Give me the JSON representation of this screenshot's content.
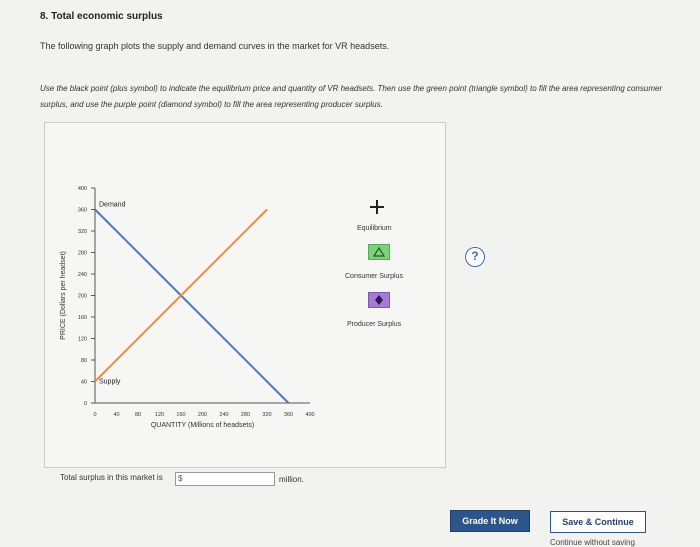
{
  "question": {
    "title": "8. Total economic surplus",
    "intro": "The following graph plots the supply and demand curves in the market for VR headsets.",
    "instructions": "Use the black point (plus symbol) to indicate the equilibrium price and quantity of VR headsets. Then use the green point (triangle symbol) to fill the area representing consumer surplus, and use the purple point (diamond symbol) to fill the area representing producer surplus."
  },
  "help_icon": "question-mark-icon",
  "chart_data": {
    "type": "line",
    "xlabel": "QUANTITY (Millions of headsets)",
    "ylabel": "PRICE (Dollars per headset)",
    "xlim": [
      0,
      400
    ],
    "ylim": [
      0,
      400
    ],
    "x_ticks": [
      0,
      40,
      80,
      120,
      160,
      200,
      240,
      280,
      320,
      360,
      400
    ],
    "y_ticks": [
      0,
      40,
      80,
      120,
      160,
      200,
      240,
      280,
      320,
      360,
      400
    ],
    "series": [
      {
        "name": "Demand",
        "color": "#4a78c2",
        "points": [
          [
            0,
            360
          ],
          [
            360,
            0
          ]
        ]
      },
      {
        "name": "Supply",
        "color": "#f08a3c",
        "points": [
          [
            0,
            40
          ],
          [
            320,
            360
          ]
        ]
      }
    ]
  },
  "legend": {
    "equilibrium": "Equilibrium",
    "consumer_surplus": "Consumer Surplus",
    "producer_surplus": "Producer Surplus"
  },
  "total": {
    "label": "Total surplus in this market is",
    "value": "$",
    "unit": "million."
  },
  "buttons": {
    "grade": "Grade It Now",
    "save": "Save & Continue",
    "continue": "Continue without saving"
  }
}
